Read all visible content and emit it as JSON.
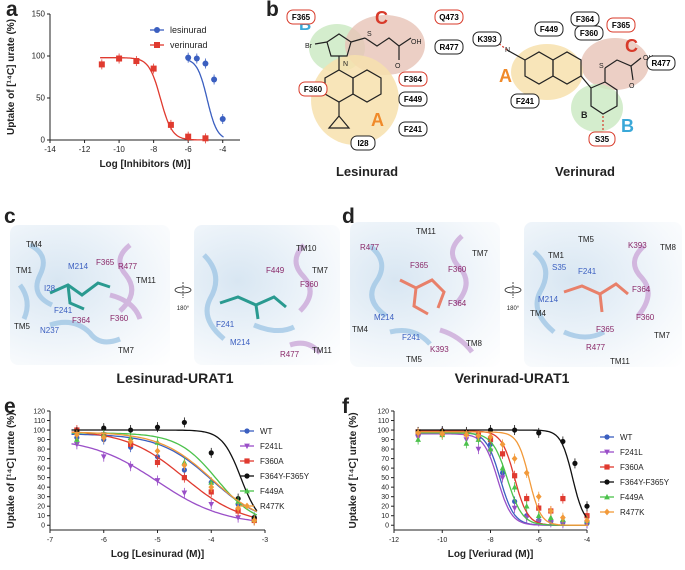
{
  "panel_labels": {
    "a": "a",
    "b": "b",
    "c": "c",
    "d": "d",
    "e": "e",
    "f": "f"
  },
  "colors": {
    "blue": "#3b5fc0",
    "red": "#e03a2f",
    "black": "#111111",
    "purple": "#9a4fc8",
    "green": "#4cc24c",
    "orange": "#f29a3a",
    "label_red": "#d83a2a",
    "label_blue": "#3aa8d8",
    "label_orange": "#f08a2a"
  },
  "chart_data": [
    {
      "id": "a",
      "type": "line",
      "xlabel": "Log [Inhibitors (M)]",
      "ylabel": "Uptake of [¹⁴C] urate (%)",
      "xlim": [
        -14,
        -3
      ],
      "ylim": [
        0,
        150
      ],
      "xticks": [
        "-14",
        "-12",
        "-10",
        "-8",
        "-6",
        "-4"
      ],
      "yticks": [
        "0",
        "50",
        "100",
        "150"
      ],
      "legend": "top-right",
      "series": [
        {
          "name": "lesinurad",
          "color": "#3b5fc0",
          "marker": "circle",
          "ic50": -4.9,
          "hill": 1.5,
          "top": 97,
          "x": [
            -6,
            -5.5,
            -5,
            -4.5,
            -4
          ],
          "y": [
            98,
            97,
            91,
            72,
            25
          ]
        },
        {
          "name": "verinurad",
          "color": "#e03a2f",
          "marker": "square",
          "ic50": -7.6,
          "hill": 1.3,
          "top": 98,
          "x": [
            -11,
            -10,
            -9,
            -8,
            -7,
            -6,
            -5
          ],
          "y": [
            90,
            97,
            94,
            85,
            18,
            4,
            2
          ]
        }
      ]
    },
    {
      "id": "e",
      "type": "line",
      "xlabel": "Log [Lesinurad (M)]",
      "ylabel": "Uptake of [¹⁴C] urate (%)",
      "xlim": [
        -7,
        -3
      ],
      "ylim": [
        -5,
        120
      ],
      "xticks": [
        "-7",
        "-6",
        "-5",
        "-4",
        "-3"
      ],
      "yticks": [
        "0",
        "10",
        "20",
        "30",
        "40",
        "50",
        "60",
        "70",
        "80",
        "90",
        "100",
        "110",
        "120"
      ],
      "legend": "right",
      "series": [
        {
          "name": "WT",
          "color": "#3b5fc0",
          "marker": "circle",
          "ic50": -4.0,
          "hill": 0.9,
          "top": 96,
          "x": [
            -6.5,
            -6,
            -5.5,
            -5,
            -4.5,
            -4,
            -3.5,
            -3.2
          ],
          "y": [
            92,
            90,
            82,
            72,
            58,
            45,
            22,
            8
          ]
        },
        {
          "name": "F241L",
          "color": "#9a4fc8",
          "marker": "triangle-down",
          "ic50": -5.0,
          "hill": 0.7,
          "top": 92,
          "x": [
            -6.5,
            -6,
            -5.5,
            -5,
            -4.5,
            -4,
            -3.5,
            -3.2
          ],
          "y": [
            85,
            72,
            62,
            47,
            34,
            22,
            8,
            5
          ]
        },
        {
          "name": "F360A",
          "color": "#e03a2f",
          "marker": "square",
          "ic50": -4.5,
          "hill": 0.8,
          "top": 100,
          "x": [
            -6.5,
            -6,
            -5.5,
            -5,
            -4.5,
            -4,
            -3.5,
            -3.2
          ],
          "y": [
            100,
            95,
            85,
            66,
            50,
            35,
            15,
            5
          ]
        },
        {
          "name": "F364Y-F365Y",
          "color": "#111111",
          "marker": "circle",
          "ic50": -3.45,
          "hill": 2.5,
          "top": 100,
          "x": [
            -6.5,
            -6,
            -5.5,
            -5,
            -4.5,
            -4,
            -3.5,
            -3.2
          ],
          "y": [
            98,
            102,
            100,
            103,
            108,
            76,
            28,
            8
          ]
        },
        {
          "name": "F449A",
          "color": "#4cc24c",
          "marker": "triangle-up",
          "ic50": -3.9,
          "hill": 1.2,
          "top": 97,
          "x": [
            -6.5,
            -6,
            -5.5,
            -5,
            -4.5,
            -4,
            -3.5,
            -3.2
          ],
          "y": [
            90,
            95,
            92,
            87,
            66,
            45,
            25,
            6
          ]
        },
        {
          "name": "R477K",
          "color": "#f29a3a",
          "marker": "diamond",
          "ic50": -4.0,
          "hill": 0.9,
          "top": 98,
          "x": [
            -6.5,
            -6,
            -5.5,
            -5,
            -4.5,
            -4,
            -3.5,
            -3.2
          ],
          "y": [
            95,
            92,
            88,
            78,
            63,
            40,
            18,
            5
          ]
        }
      ]
    },
    {
      "id": "f",
      "type": "line",
      "xlabel": "Log [Veriurad (M)]",
      "ylabel": "Uptake of [¹⁴C] urate (%)",
      "xlim": [
        -12,
        -4
      ],
      "ylim": [
        -5,
        120
      ],
      "xticks": [
        "-12",
        "-10",
        "-8",
        "-6",
        "-4"
      ],
      "yticks": [
        "0",
        "10",
        "20",
        "30",
        "40",
        "50",
        "60",
        "70",
        "80",
        "90",
        "100",
        "110",
        "120"
      ],
      "legend": "right",
      "series": [
        {
          "name": "WT",
          "color": "#3b5fc0",
          "marker": "circle",
          "ic50": -7.6,
          "hill": 1.5,
          "top": 98,
          "x": [
            -11,
            -10,
            -9,
            -8.5,
            -8,
            -7.5,
            -7,
            -6.5,
            -6,
            -5.5,
            -5,
            -4
          ],
          "y": [
            95,
            97,
            96,
            92,
            85,
            55,
            25,
            10,
            5,
            4,
            3,
            2
          ]
        },
        {
          "name": "F241L",
          "color": "#9a4fc8",
          "marker": "triangle-down",
          "ic50": -7.7,
          "hill": 1.5,
          "top": 96,
          "x": [
            -11,
            -10,
            -9,
            -8.5,
            -8,
            -7.5,
            -7,
            -6.5,
            -6,
            -5.5,
            -5,
            -4
          ],
          "y": [
            92,
            98,
            90,
            80,
            78,
            50,
            18,
            8,
            4,
            3,
            2,
            2
          ]
        },
        {
          "name": "F360A",
          "color": "#e03a2f",
          "marker": "square",
          "ic50": -7.0,
          "hill": 1.6,
          "top": 99,
          "x": [
            -11,
            -10,
            -9,
            -8.5,
            -8,
            -7.5,
            -7,
            -6.5,
            -6,
            -5.5,
            -5,
            -4
          ],
          "y": [
            98,
            97,
            96,
            95,
            90,
            75,
            52,
            28,
            18,
            15,
            28,
            10
          ]
        },
        {
          "name": "F364Y-F365Y",
          "color": "#111111",
          "marker": "circle",
          "ic50": -4.6,
          "hill": 1.8,
          "top": 100,
          "x": [
            -11,
            -10,
            -9,
            -8,
            -7,
            -6,
            -5,
            -4.5,
            -4
          ],
          "y": [
            98,
            99,
            98,
            100,
            100,
            97,
            88,
            65,
            20
          ]
        },
        {
          "name": "F449A",
          "color": "#4cc24c",
          "marker": "triangle-up",
          "ic50": -7.3,
          "hill": 1.4,
          "top": 97,
          "x": [
            -11,
            -10,
            -9,
            -8.5,
            -8,
            -7.5,
            -7,
            -6.5,
            -6,
            -5.5,
            -5,
            -4
          ],
          "y": [
            90,
            95,
            86,
            90,
            80,
            60,
            40,
            20,
            10,
            8,
            6,
            5
          ]
        },
        {
          "name": "R477K",
          "color": "#f29a3a",
          "marker": "diamond",
          "ic50": -6.4,
          "hill": 1.8,
          "top": 98,
          "x": [
            -11,
            -10,
            -9,
            -8.5,
            -8,
            -7.5,
            -7,
            -6.5,
            -6,
            -5.5,
            -5,
            -4
          ],
          "y": [
            97,
            96,
            95,
            94,
            93,
            85,
            70,
            55,
            30,
            15,
            8,
            5
          ]
        }
      ]
    }
  ],
  "panel_b": {
    "lesinurad": {
      "residues": [
        "F365",
        "Q473",
        "R477",
        "F364",
        "F449",
        "F360",
        "F241",
        "I28"
      ],
      "region_labels": [
        "B",
        "C",
        "A"
      ],
      "atoms": [
        "Br",
        "N",
        "S",
        "OH",
        "O"
      ],
      "name": "Lesinurad"
    },
    "verinurad": {
      "residues": [
        "F364",
        "F360",
        "F365",
        "K393",
        "F449",
        "R477",
        "F241",
        "S35"
      ],
      "region_labels": [
        "A",
        "B",
        "C"
      ],
      "atoms": [
        "N",
        "S",
        "OH",
        "O",
        "B"
      ],
      "name": "Verinurad"
    }
  },
  "panel_c": {
    "left": [
      "TM4",
      "TM1",
      "M214",
      "F365",
      "R477",
      "TM11",
      "I28",
      "F241",
      "N237",
      "TM5",
      "F364",
      "F360",
      "TM7"
    ],
    "rotation": "180°",
    "right": [
      "TM10",
      "F449",
      "TM7",
      "F360",
      "F241",
      "M214",
      "R477",
      "TM11"
    ],
    "caption": "Lesinurad-URAT1"
  },
  "panel_d": {
    "left": [
      "TM11",
      "R477",
      "TM7",
      "F365",
      "F360",
      "F364",
      "M214",
      "TM4",
      "F241",
      "K393",
      "TM8",
      "TM5"
    ],
    "rotation": "180°",
    "right": [
      "TM5",
      "TM1",
      "S35",
      "K393",
      "TM8",
      "F241",
      "M214",
      "TM4",
      "F364",
      "F360",
      "F365",
      "R477",
      "TM7",
      "TM11"
    ],
    "caption": "Verinurad-URAT1"
  }
}
